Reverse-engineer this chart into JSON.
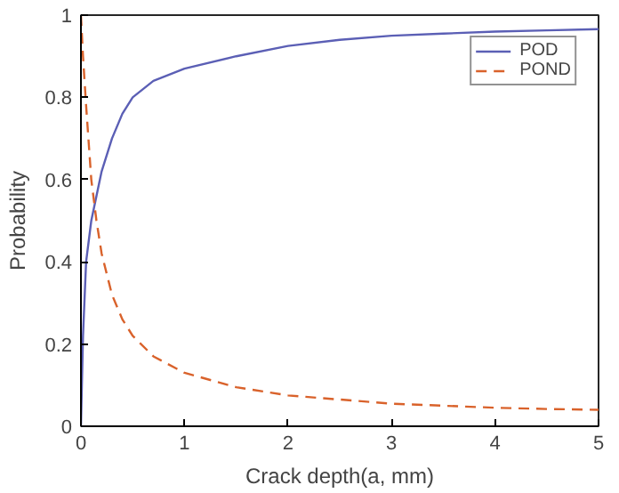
{
  "chart_data": {
    "type": "line",
    "xlabel": "Crack depth(a, mm)",
    "ylabel": "Probability",
    "series": [
      {
        "name": "POD",
        "color": "#5b5fb5",
        "line_style": "solid",
        "x": [
          0,
          0.02,
          0.05,
          0.1,
          0.15,
          0.2,
          0.3,
          0.4,
          0.5,
          0.7,
          1,
          1.5,
          2,
          2.5,
          3,
          3.5,
          4,
          4.5,
          5
        ],
        "values": [
          0,
          0.22,
          0.4,
          0.5,
          0.56,
          0.62,
          0.7,
          0.76,
          0.8,
          0.84,
          0.87,
          0.9,
          0.925,
          0.94,
          0.95,
          0.955,
          0.96,
          0.963,
          0.966
        ]
      },
      {
        "name": "POND",
        "color": "#d9622b",
        "line_style": "dashed",
        "x": [
          0,
          0.02,
          0.05,
          0.1,
          0.15,
          0.2,
          0.3,
          0.4,
          0.5,
          0.7,
          1,
          1.5,
          2,
          2.5,
          3,
          3.5,
          4,
          4.5,
          5
        ],
        "values": [
          1,
          0.9,
          0.78,
          0.6,
          0.5,
          0.42,
          0.32,
          0.26,
          0.22,
          0.17,
          0.13,
          0.095,
          0.075,
          0.065,
          0.055,
          0.05,
          0.045,
          0.042,
          0.04
        ]
      }
    ],
    "xlim": [
      0,
      5
    ],
    "xticks": [
      0,
      1,
      2,
      3,
      4,
      5
    ],
    "ylim": [
      0,
      1
    ],
    "yticks": [
      0,
      0.2,
      0.4,
      0.6,
      0.8,
      1
    ],
    "grid": false,
    "legend": "top right",
    "marker": "none"
  }
}
